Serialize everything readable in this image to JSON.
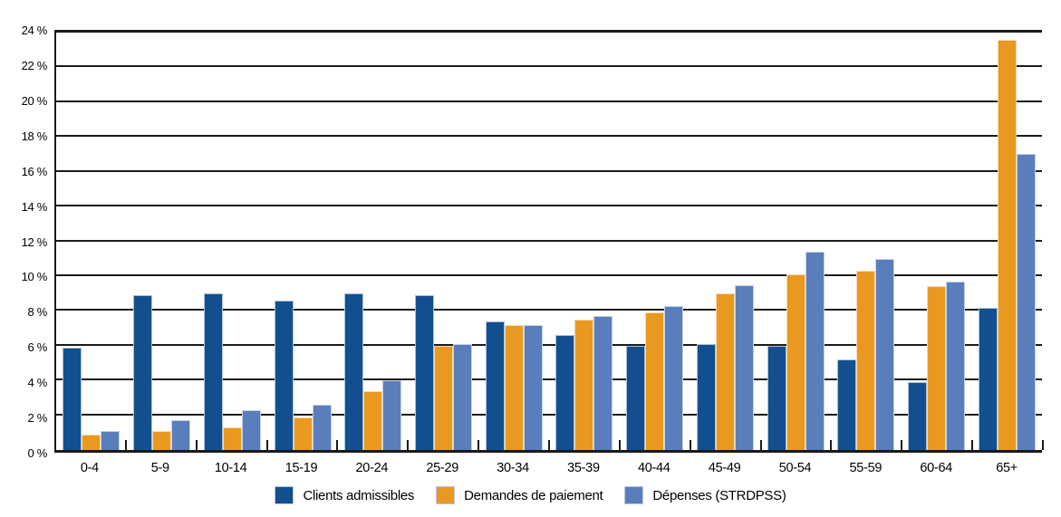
{
  "chart_data": {
    "type": "bar",
    "title": "",
    "categories": [
      "0-4",
      "5-9",
      "10-14",
      "15-19",
      "20-24",
      "25-29",
      "30-34",
      "35-39",
      "40-44",
      "45-49",
      "50-54",
      "55-59",
      "60-64",
      "65+"
    ],
    "series": [
      {
        "name": "Clients admissibles",
        "color": "#134F8F",
        "values": [
          5.9,
          8.9,
          9.0,
          8.6,
          9.0,
          8.9,
          7.4,
          6.6,
          6.0,
          6.1,
          6.0,
          5.2,
          3.9,
          8.2
        ]
      },
      {
        "name": "Demandes de paiement",
        "color": "#E9991F",
        "values": [
          0.9,
          1.1,
          1.3,
          1.9,
          3.4,
          6.0,
          7.2,
          7.5,
          7.9,
          9.0,
          10.1,
          10.3,
          9.4,
          23.6
        ]
      },
      {
        "name": "Dépenses (STRDPSS)",
        "color": "#5A7EBC",
        "values": [
          1.1,
          1.7,
          2.3,
          2.6,
          4.0,
          6.1,
          7.2,
          7.7,
          8.3,
          9.5,
          11.4,
          11.0,
          9.7,
          17.0
        ]
      }
    ],
    "xlabel": "",
    "ylabel": "",
    "ylim": [
      0,
      24
    ],
    "ytick_step": 2,
    "y_tick_labels": [
      "0 %",
      "2 %",
      "4 %",
      "6 %",
      "8 %",
      "10 %",
      "12 %",
      "14 %",
      "16 %",
      "18 %",
      "20 %",
      "22 %",
      "24 %"
    ],
    "grid": true,
    "gridline_color": "#1a1a1a",
    "legend_position": "bottom"
  }
}
